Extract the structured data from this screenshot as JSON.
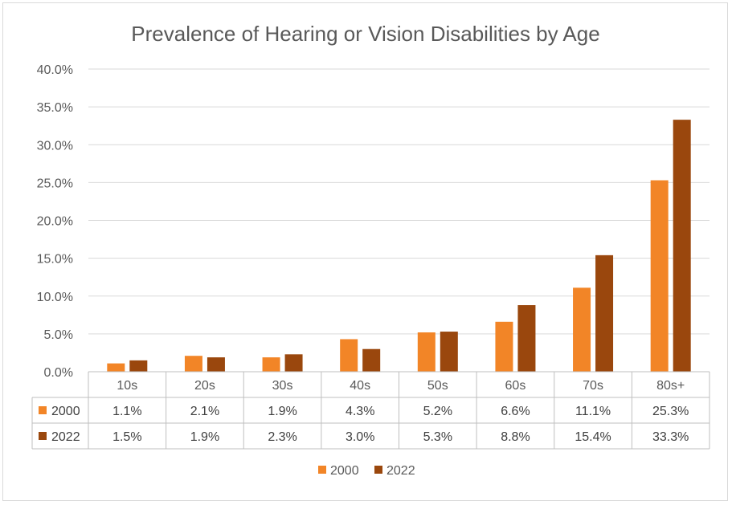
{
  "chart_data": {
    "type": "bar",
    "title": "Prevalence of Hearing or Vision Disabilities by Age",
    "categories": [
      "10s",
      "20s",
      "30s",
      "40s",
      "50s",
      "60s",
      "70s",
      "80s+"
    ],
    "series": [
      {
        "name": "2000",
        "color": "#f28527",
        "values": [
          1.1,
          2.1,
          1.9,
          4.3,
          5.2,
          6.6,
          11.1,
          25.3
        ],
        "labels": [
          "1.1%",
          "2.1%",
          "1.9%",
          "4.3%",
          "5.2%",
          "6.6%",
          "11.1%",
          "25.3%"
        ]
      },
      {
        "name": "2022",
        "color": "#9a470d",
        "values": [
          1.5,
          1.9,
          2.3,
          3.0,
          5.3,
          8.8,
          15.4,
          33.3
        ],
        "labels": [
          "1.5%",
          "1.9%",
          "2.3%",
          "3.0%",
          "5.3%",
          "8.8%",
          "15.4%",
          "33.3%"
        ]
      }
    ],
    "ylim": [
      0,
      40
    ],
    "yticks": [
      0,
      5,
      10,
      15,
      20,
      25,
      30,
      35,
      40
    ],
    "ytick_labels": [
      "0.0%",
      "5.0%",
      "10.0%",
      "15.0%",
      "20.0%",
      "25.0%",
      "30.0%",
      "35.0%",
      "40.0%"
    ],
    "grid": true,
    "data_table": true,
    "legend_position": "bottom"
  }
}
